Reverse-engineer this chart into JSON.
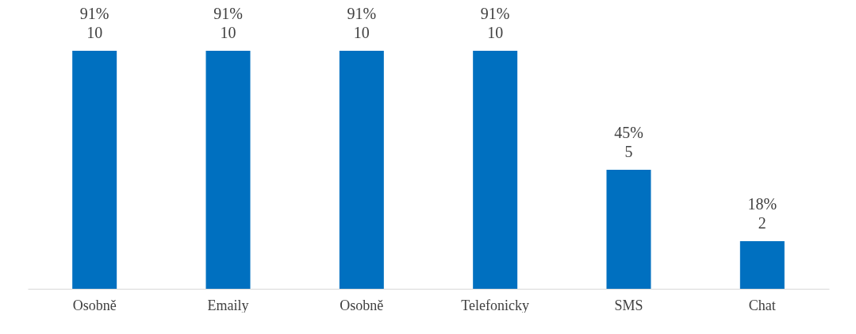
{
  "chart_data": {
    "type": "bar",
    "categories": [
      "Osobně",
      "Emaily",
      "Osobně",
      "Telefonicky",
      "SMS",
      "Chat"
    ],
    "values": [
      10,
      10,
      10,
      10,
      5,
      2
    ],
    "value_labels": [
      "91%\n10",
      "91%\n10",
      "91%\n10",
      "91%\n10",
      "45%\n5",
      "18%\n2"
    ],
    "color": "#0070c0",
    "grid": false
  }
}
